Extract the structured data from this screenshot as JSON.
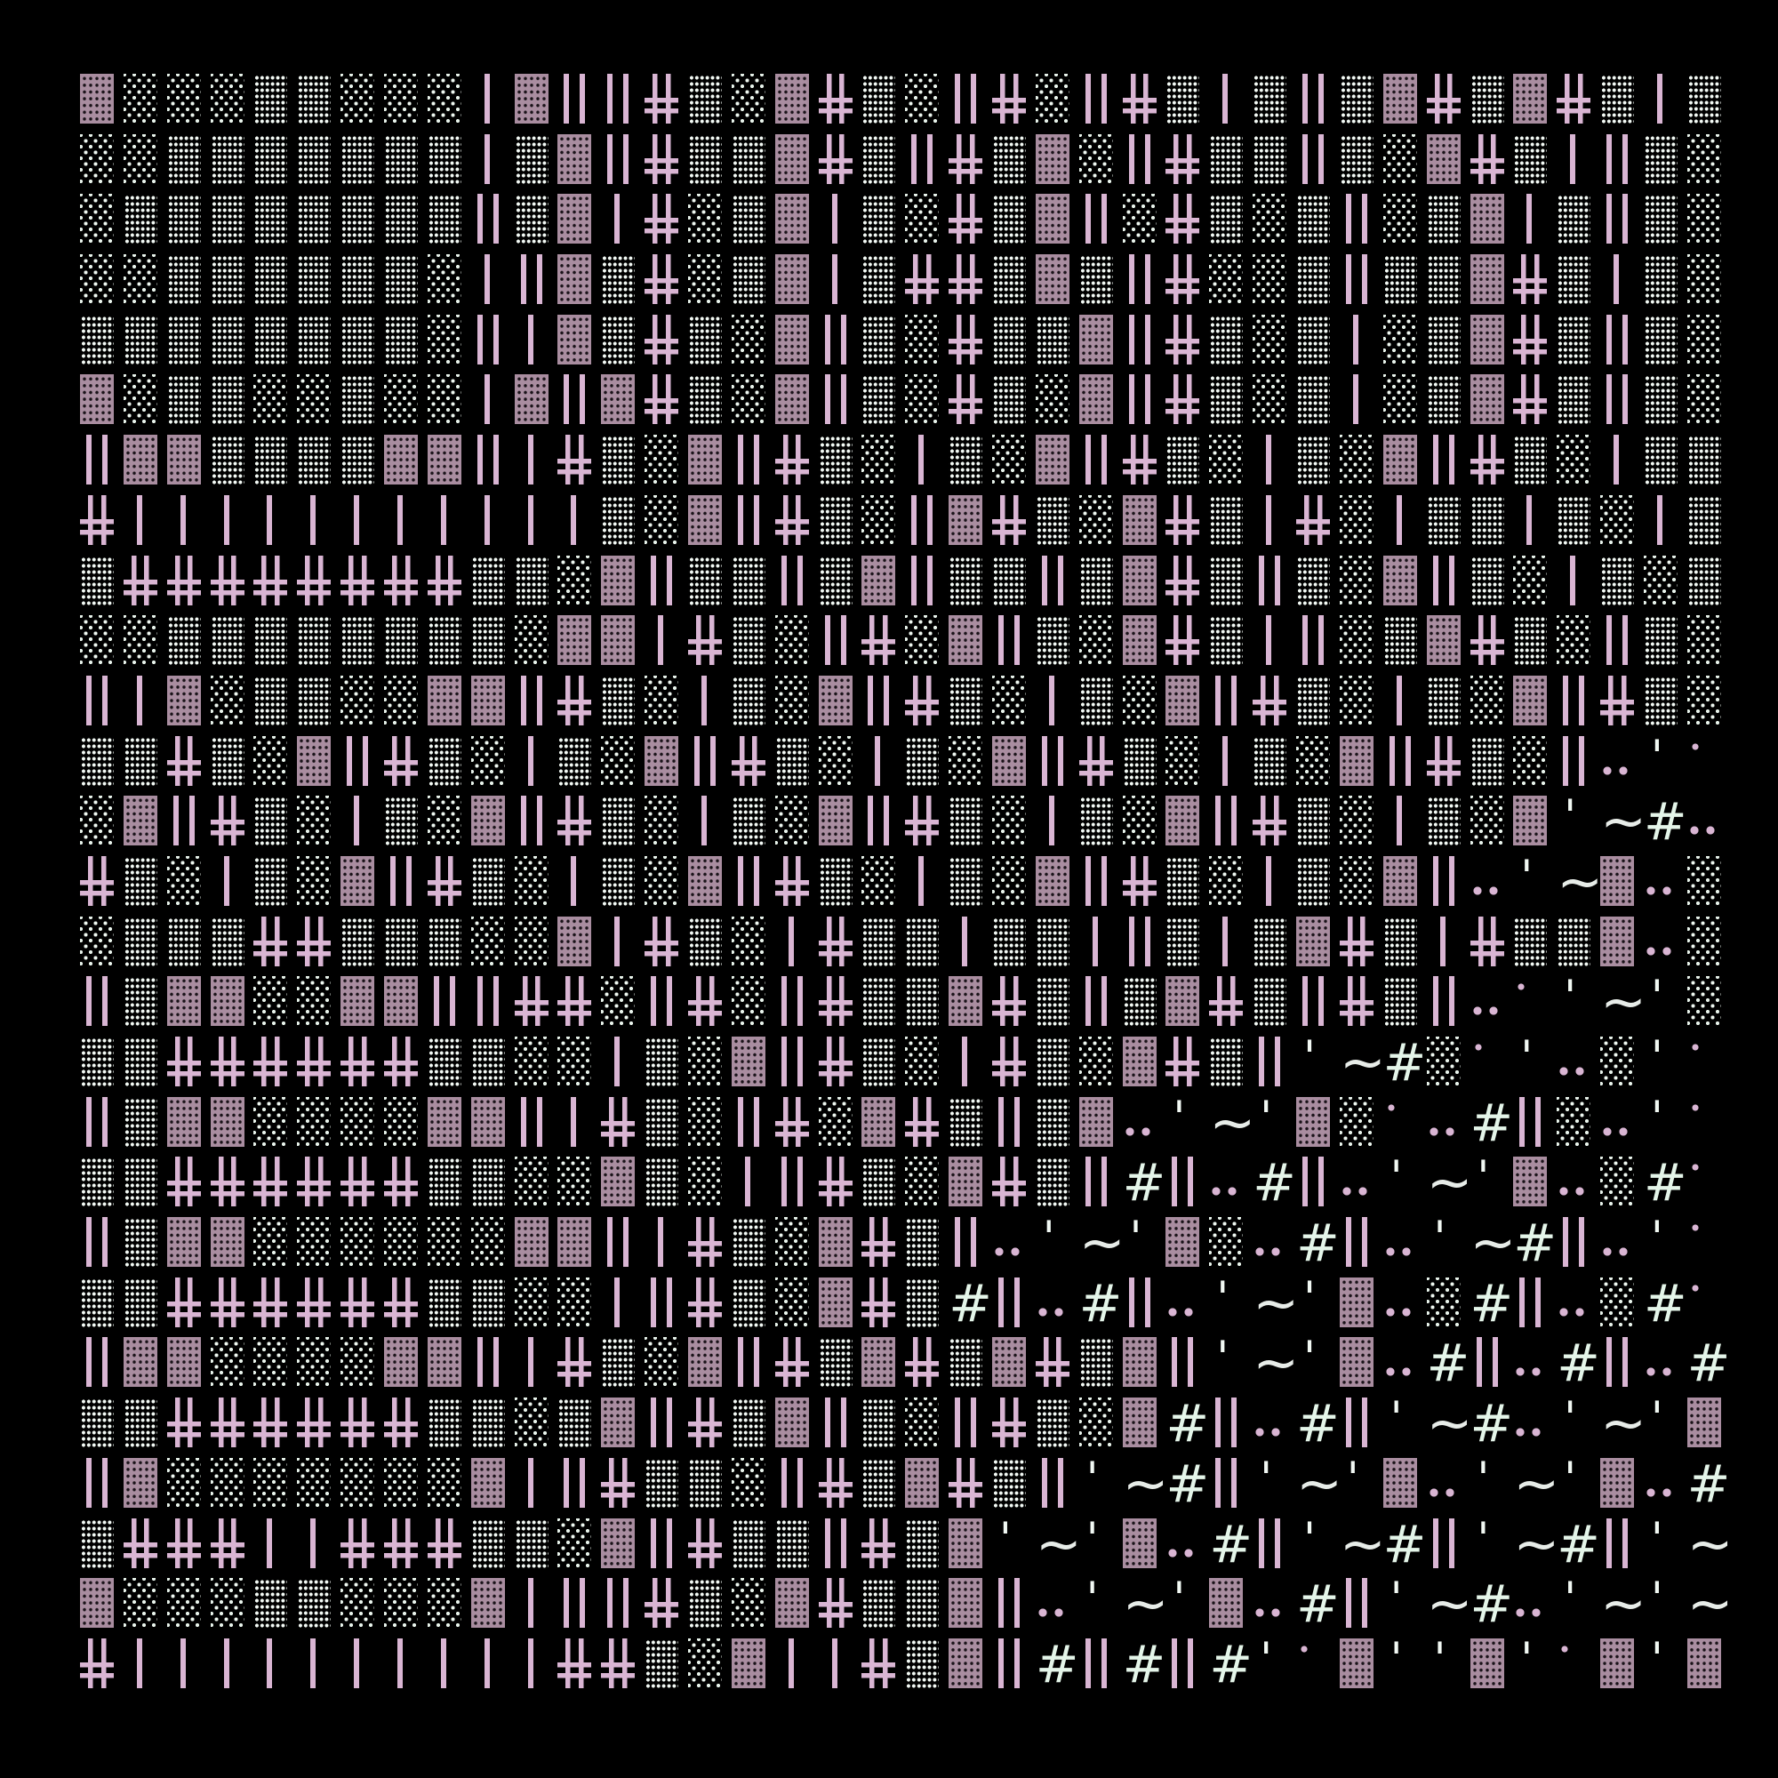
{
  "palette": {
    "background": "#000000",
    "pink": "#d9b5d3",
    "mauve_block": "#a98da0",
    "mauve_hole": "#191218",
    "dot_white": "#eef7f0",
    "dot_bright": "#f3faf5",
    "hash_mint": "#e4f5e9",
    "tilde_grey": "#e7ece8",
    "tick_white": "#f1f8f3"
  },
  "legend": {
    ".": "dot-sparse",
    ":": "dot-dense",
    "M": "mauve-block",
    "|": "bar-single",
    "b": "bar-double",
    "+": "cross-grid",
    "#": "hash-char",
    "~": "tilde-char",
    "'": "tick-char",
    ",": "pink-dot-pair",
    "o": "pink-dot",
    " ": "empty"
  },
  "glyph_text": {
    "#": "#",
    "~": "~",
    "'": "'"
  },
  "grid": {
    "columns": 38,
    "rows": 27,
    "cells": [
      "M...::...|Mbb+:.M+:.b+.b+:|:b:M+:M+:|:",
      "..:::::::|:Mb+::M+:b+:M.b+::b:.M+:|b:.",
      ".::::::::b:M|+.:M|:.+:Mb.+:.:b.:M|:b:.",
      "..::::::.|bM:+.:M|:++:M:b+..:b::M+:|:.",
      "::::::::.b|M:+:.Mb:.+::Mb+:.:|.:M+:b:.",
      "M.::..:..|MbM+:.Mb:.+:.Mb+:.:|.:M+:b:.",
      "bMM::::MMb|+:.Mb+:.|:.Mb+:.|:.Mb+:.|::",
      "+|||||||||||:.Mb+:.bM+:.M+:|+.|::|:.|:",
      ":++++++++::.Mb::b:Mb::b:M+:b:.Mb:.|:.:",
      "..::::::::.MM|+:.b+.Mb:.M+:|b.:M+:.b:.",
      "b|M.::..MMb+:.|:.Mb+:.|:.Mb+:.|:.Mb+:.",
      "::+:.Mb+:.|:.Mb+:.|:.Mb+:.|:.Mb+:.b,'o",
      ".Mb+:.|:.Mb+:.|:.Mb+:.|:.Mb+:.|:.M'~#,",
      "+:.|:.Mb+:.|:.Mb+:.|:.Mb+:.|:.Mb,'~M,.",
      ".:::++:::..M|+:.|+::|::|b:|:M+:|+::M,.",
      "b:MM..MMbb++.b+.b+::M+:b:M+:b+:b,o'~'.",
      "::++++++::..|:.Mb+:.|+:.M+:b'~#.o',.'o",
      "b:MM....MMb|+:.b+.M+:b:M,'~'M.o,#b.,'o",
      "::++++++::..M:.|b+:.M+:b#b,#b,'~'M,.#o",
      "b:MM......MMb|+:.M+:b,'~'M.,#b,'~#b,'o",
      "::++++++::..|b+:.M+:#b,#b,'~'M,.#b,.#o",
      "bMM....MMb|+:.Mb+:M+:M+:Mb'~'M,#b,#b,#",
      "::++++++::.:Mb+:Mb:.b+:.M#b,#b'~#,'~'M",
      "bM.......M|b+::.b+:M+:b'~#b'~'M,'~'M,#",
      ":+++||+++::.Mb+::b+:M'~'M,#b'~#b'~#b'~",
      "M...::...M|bb+:.M+::Mb,'~'M,#b'~#,'~'~",
      "+||||||||||++:.M||+:Mb#b#b#'oM''M'oM'M"
    ]
  }
}
